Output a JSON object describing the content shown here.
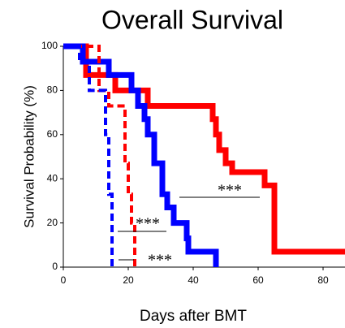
{
  "chart_data": {
    "type": "step",
    "title": "Overall Survival",
    "xlabel": "Days after BMT",
    "ylabel": "Survival Probability (%)",
    "xlim": [
      0,
      87
    ],
    "ylim": [
      0,
      100
    ],
    "xticks": [
      0,
      20,
      40,
      60,
      80
    ],
    "yticks": [
      0,
      20,
      40,
      60,
      80,
      100
    ],
    "series": [
      {
        "color": "#ff0000",
        "dashed": false,
        "x": [
          0,
          7,
          16,
          26,
          46,
          47,
          48,
          50,
          52,
          62,
          65,
          87
        ],
        "values": [
          100,
          87,
          80,
          73,
          67,
          60,
          53,
          47,
          43,
          37,
          7,
          7
        ]
      },
      {
        "color": "#0000ff",
        "dashed": false,
        "x": [
          0,
          6,
          14,
          21,
          23,
          25,
          26,
          28,
          30.5,
          32,
          34,
          38,
          38.5,
          47
        ],
        "values": [
          100,
          93,
          87,
          80,
          73,
          67,
          60,
          47,
          33,
          27,
          20,
          13,
          7,
          0
        ]
      },
      {
        "color": "#ff0000",
        "dashed": true,
        "x": [
          0,
          11,
          14,
          18,
          19,
          20,
          21,
          22
        ],
        "values": [
          100,
          80,
          73,
          73,
          47,
          33,
          20,
          0
        ]
      },
      {
        "color": "#0000ff",
        "dashed": true,
        "x": [
          0,
          5,
          8,
          12,
          13,
          14,
          15
        ],
        "values": [
          100,
          93,
          80,
          80,
          60,
          33,
          0
        ]
      }
    ],
    "annotations": [
      "***",
      "***",
      "***"
    ]
  }
}
